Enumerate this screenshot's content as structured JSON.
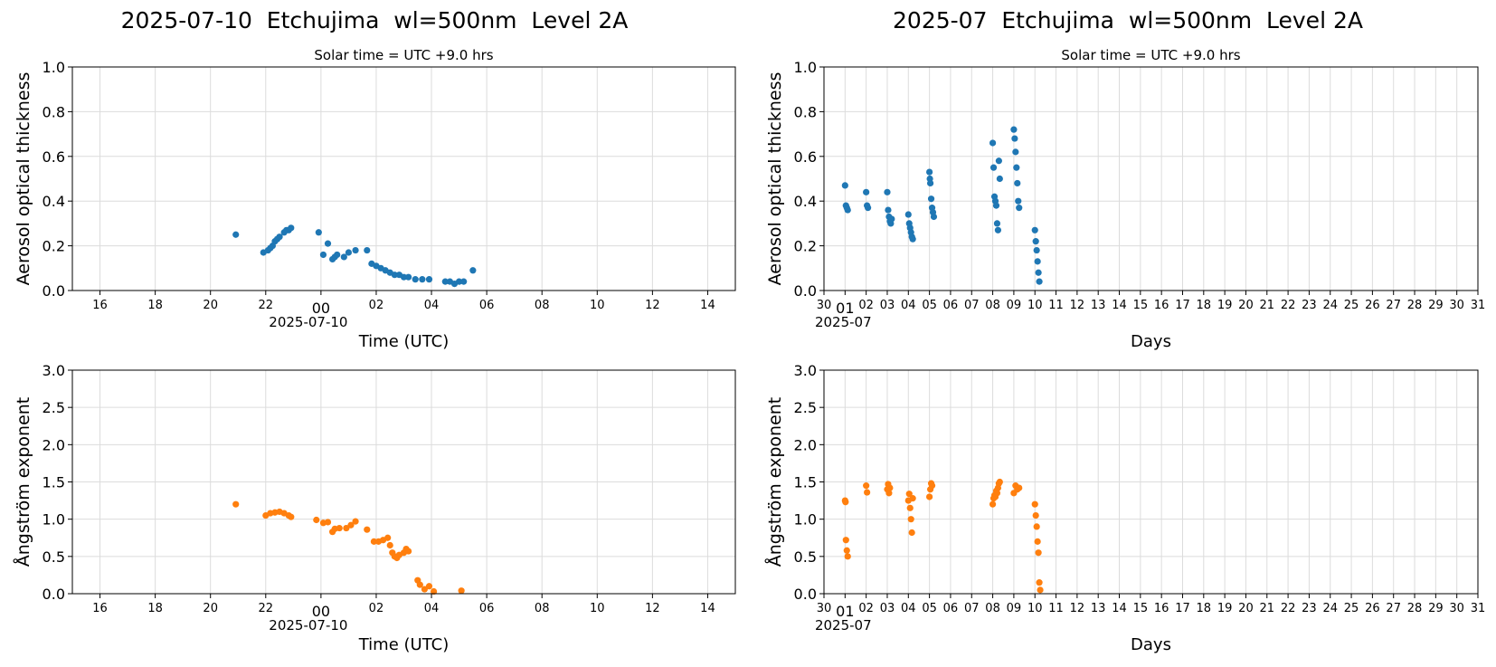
{
  "titles": {
    "left": "2025-07-10  Etchujima  wl=500nm  Level 2A",
    "right": "2025-07  Etchujima  wl=500nm  Level 2A"
  },
  "colors": {
    "aot": "#1f77b4",
    "angstrom": "#ff7f0e",
    "grid": "#dcdcdc"
  },
  "chart_data": [
    {
      "id": "daily-aot",
      "type": "scatter",
      "subtitle": "Solar time = UTC +9.0 hrs",
      "xlabel": "Time (UTC)",
      "ylabel": "Aerosol optical thickness",
      "xlim_hours_rel_2025_07_10_00utc": [
        -9,
        15
      ],
      "x_tick_labels": [
        "16",
        "18",
        "20",
        "22",
        "00",
        "02",
        "04",
        "06",
        "08",
        "10",
        "12",
        "14"
      ],
      "x_date_label": "2025-07-10",
      "ylim": [
        0,
        1.0
      ],
      "y_tick_labels": [
        "0.0",
        "0.2",
        "0.4",
        "0.6",
        "0.8",
        "1.0"
      ],
      "grid": true,
      "x": [
        "2025-07-09 20:55",
        "2025-07-09 21:55",
        "2025-07-09 22:05",
        "2025-07-09 22:10",
        "2025-07-09 22:15",
        "2025-07-09 22:20",
        "2025-07-09 22:25",
        "2025-07-09 22:30",
        "2025-07-09 22:40",
        "2025-07-09 22:45",
        "2025-07-09 22:50",
        "2025-07-09 22:55",
        "2025-07-09 23:55",
        "2025-07-10 00:05",
        "2025-07-10 00:15",
        "2025-07-10 00:25",
        "2025-07-10 00:30",
        "2025-07-10 00:35",
        "2025-07-10 00:50",
        "2025-07-10 01:00",
        "2025-07-10 01:15",
        "2025-07-10 01:40",
        "2025-07-10 01:50",
        "2025-07-10 02:00",
        "2025-07-10 02:10",
        "2025-07-10 02:20",
        "2025-07-10 02:30",
        "2025-07-10 02:40",
        "2025-07-10 02:50",
        "2025-07-10 03:00",
        "2025-07-10 03:10",
        "2025-07-10 03:25",
        "2025-07-10 03:40",
        "2025-07-10 03:55",
        "2025-07-10 04:30",
        "2025-07-10 04:40",
        "2025-07-10 04:50",
        "2025-07-10 05:00",
        "2025-07-10 05:10",
        "2025-07-10 05:30"
      ],
      "y": [
        0.25,
        0.17,
        0.18,
        0.19,
        0.2,
        0.22,
        0.23,
        0.24,
        0.26,
        0.27,
        0.27,
        0.28,
        0.26,
        0.16,
        0.21,
        0.14,
        0.15,
        0.16,
        0.15,
        0.17,
        0.18,
        0.18,
        0.12,
        0.11,
        0.1,
        0.09,
        0.08,
        0.07,
        0.07,
        0.06,
        0.06,
        0.05,
        0.05,
        0.05,
        0.04,
        0.04,
        0.03,
        0.04,
        0.04,
        0.09
      ]
    },
    {
      "id": "monthly-aot",
      "type": "scatter",
      "subtitle": "Solar time = UTC +9.0 hrs",
      "xlabel": "Days",
      "ylabel": "Aerosol optical thickness",
      "xlim_days": [
        "2025-06-30",
        "2025-07-31"
      ],
      "x_tick_labels": [
        "30",
        "01",
        "02",
        "03",
        "04",
        "05",
        "06",
        "07",
        "08",
        "09",
        "10",
        "11",
        "12",
        "13",
        "14",
        "15",
        "16",
        "17",
        "18",
        "19",
        "20",
        "21",
        "22",
        "23",
        "24",
        "25",
        "26",
        "27",
        "28",
        "29",
        "30",
        "31"
      ],
      "x_date_label": "2025-07",
      "ylim": [
        0,
        1.0
      ],
      "y_tick_labels": [
        "0.0",
        "0.2",
        "0.4",
        "0.6",
        "0.8",
        "1.0"
      ],
      "grid": true,
      "x": [
        "2025-07-01 00:00",
        "2025-07-01 01:00",
        "2025-07-01 02:00",
        "2025-07-01 03:00",
        "2025-07-02 00:00",
        "2025-07-02 01:00",
        "2025-07-02 02:00",
        "2025-07-03 00:00",
        "2025-07-03 01:00",
        "2025-07-03 02:00",
        "2025-07-03 03:00",
        "2025-07-03 04:00",
        "2025-07-03 05:00",
        "2025-07-04 00:00",
        "2025-07-04 01:00",
        "2025-07-04 02:00",
        "2025-07-04 03:00",
        "2025-07-04 04:00",
        "2025-07-04 05:00",
        "2025-07-05 00:00",
        "2025-07-05 00:30",
        "2025-07-05 01:00",
        "2025-07-05 02:00",
        "2025-07-05 03:00",
        "2025-07-05 04:00",
        "2025-07-05 05:00",
        "2025-07-08 00:00",
        "2025-07-08 01:00",
        "2025-07-08 02:00",
        "2025-07-08 03:00",
        "2025-07-08 04:00",
        "2025-07-08 05:00",
        "2025-07-08 06:00",
        "2025-07-08 07:00",
        "2025-07-08 08:00",
        "2025-07-09 00:00",
        "2025-07-09 01:00",
        "2025-07-09 02:00",
        "2025-07-09 03:00",
        "2025-07-09 04:00",
        "2025-07-09 05:00",
        "2025-07-09 06:00",
        "2025-07-10 00:00",
        "2025-07-10 01:00",
        "2025-07-10 02:00",
        "2025-07-10 03:00",
        "2025-07-10 04:00",
        "2025-07-10 05:00"
      ],
      "y": [
        0.47,
        0.38,
        0.37,
        0.36,
        0.44,
        0.38,
        0.37,
        0.44,
        0.36,
        0.33,
        0.31,
        0.3,
        0.32,
        0.34,
        0.3,
        0.28,
        0.26,
        0.24,
        0.23,
        0.53,
        0.5,
        0.48,
        0.41,
        0.37,
        0.35,
        0.33,
        0.66,
        0.55,
        0.42,
        0.4,
        0.38,
        0.3,
        0.27,
        0.58,
        0.5,
        0.72,
        0.68,
        0.62,
        0.55,
        0.48,
        0.4,
        0.37,
        0.27,
        0.22,
        0.18,
        0.13,
        0.08,
        0.04
      ]
    },
    {
      "id": "daily-angstrom",
      "type": "scatter",
      "xlabel": "Time (UTC)",
      "ylabel": "Ångström exponent",
      "xlim_hours_rel_2025_07_10_00utc": [
        -9,
        15
      ],
      "x_tick_labels": [
        "16",
        "18",
        "20",
        "22",
        "00",
        "02",
        "04",
        "06",
        "08",
        "10",
        "12",
        "14"
      ],
      "x_date_label": "2025-07-10",
      "ylim": [
        0,
        3.0
      ],
      "y_tick_labels": [
        "0.0",
        "0.5",
        "1.0",
        "1.5",
        "2.0",
        "2.5",
        "3.0"
      ],
      "grid": true,
      "x": [
        "2025-07-09 20:55",
        "2025-07-09 22:00",
        "2025-07-09 22:10",
        "2025-07-09 22:20",
        "2025-07-09 22:30",
        "2025-07-09 22:40",
        "2025-07-09 22:50",
        "2025-07-09 22:55",
        "2025-07-09 23:50",
        "2025-07-10 00:05",
        "2025-07-10 00:15",
        "2025-07-10 00:25",
        "2025-07-10 00:30",
        "2025-07-10 00:40",
        "2025-07-10 00:55",
        "2025-07-10 01:05",
        "2025-07-10 01:15",
        "2025-07-10 01:40",
        "2025-07-10 01:55",
        "2025-07-10 02:05",
        "2025-07-10 02:15",
        "2025-07-10 02:25",
        "2025-07-10 02:30",
        "2025-07-10 02:35",
        "2025-07-10 02:40",
        "2025-07-10 02:45",
        "2025-07-10 02:50",
        "2025-07-10 03:00",
        "2025-07-10 03:05",
        "2025-07-10 03:10",
        "2025-07-10 03:30",
        "2025-07-10 03:35",
        "2025-07-10 03:45",
        "2025-07-10 03:55",
        "2025-07-10 04:05",
        "2025-07-10 05:05"
      ],
      "y": [
        1.2,
        1.05,
        1.08,
        1.09,
        1.1,
        1.08,
        1.05,
        1.03,
        0.99,
        0.95,
        0.96,
        0.83,
        0.87,
        0.88,
        0.88,
        0.92,
        0.97,
        0.86,
        0.7,
        0.7,
        0.72,
        0.75,
        0.65,
        0.55,
        0.5,
        0.48,
        0.52,
        0.55,
        0.6,
        0.57,
        0.18,
        0.12,
        0.06,
        0.1,
        0.03,
        0.04
      ]
    },
    {
      "id": "monthly-angstrom",
      "type": "scatter",
      "xlabel": "Days",
      "ylabel": "Ångström exponent",
      "xlim_days": [
        "2025-06-30",
        "2025-07-31"
      ],
      "x_tick_labels": [
        "30",
        "01",
        "02",
        "03",
        "04",
        "05",
        "06",
        "07",
        "08",
        "09",
        "10",
        "11",
        "12",
        "13",
        "14",
        "15",
        "16",
        "17",
        "18",
        "19",
        "20",
        "21",
        "22",
        "23",
        "24",
        "25",
        "26",
        "27",
        "28",
        "29",
        "30",
        "31"
      ],
      "x_date_label": "2025-07",
      "ylim": [
        0,
        3.0
      ],
      "y_tick_labels": [
        "0.0",
        "0.5",
        "1.0",
        "1.5",
        "2.0",
        "2.5",
        "3.0"
      ],
      "grid": true,
      "x": [
        "2025-07-01 00:00",
        "2025-07-01 00:30",
        "2025-07-01 01:00",
        "2025-07-01 02:00",
        "2025-07-01 03:00",
        "2025-07-02 00:00",
        "2025-07-02 01:00",
        "2025-07-03 00:00",
        "2025-07-03 01:00",
        "2025-07-03 02:00",
        "2025-07-03 03:00",
        "2025-07-04 00:00",
        "2025-07-04 01:00",
        "2025-07-04 02:00",
        "2025-07-04 03:00",
        "2025-07-04 04:00",
        "2025-07-04 05:00",
        "2025-07-05 00:00",
        "2025-07-05 01:00",
        "2025-07-05 02:00",
        "2025-07-05 03:00",
        "2025-07-08 00:00",
        "2025-07-08 01:00",
        "2025-07-08 02:00",
        "2025-07-08 03:00",
        "2025-07-08 04:00",
        "2025-07-08 05:00",
        "2025-07-08 06:00",
        "2025-07-08 07:00",
        "2025-07-08 08:00",
        "2025-07-09 00:00",
        "2025-07-09 02:00",
        "2025-07-09 04:00",
        "2025-07-09 06:00",
        "2025-07-10 00:00",
        "2025-07-10 01:00",
        "2025-07-10 02:00",
        "2025-07-10 03:00",
        "2025-07-10 04:00",
        "2025-07-10 05:00",
        "2025-07-10 06:00"
      ],
      "y": [
        1.25,
        1.23,
        0.72,
        0.58,
        0.5,
        1.45,
        1.36,
        1.4,
        1.47,
        1.35,
        1.42,
        1.25,
        1.34,
        1.15,
        1.0,
        0.82,
        1.28,
        1.3,
        1.4,
        1.48,
        1.45,
        1.2,
        1.28,
        1.32,
        1.3,
        1.38,
        1.35,
        1.42,
        1.48,
        1.5,
        1.35,
        1.45,
        1.4,
        1.42,
        1.2,
        1.05,
        0.9,
        0.7,
        0.55,
        0.15,
        0.05
      ]
    }
  ]
}
